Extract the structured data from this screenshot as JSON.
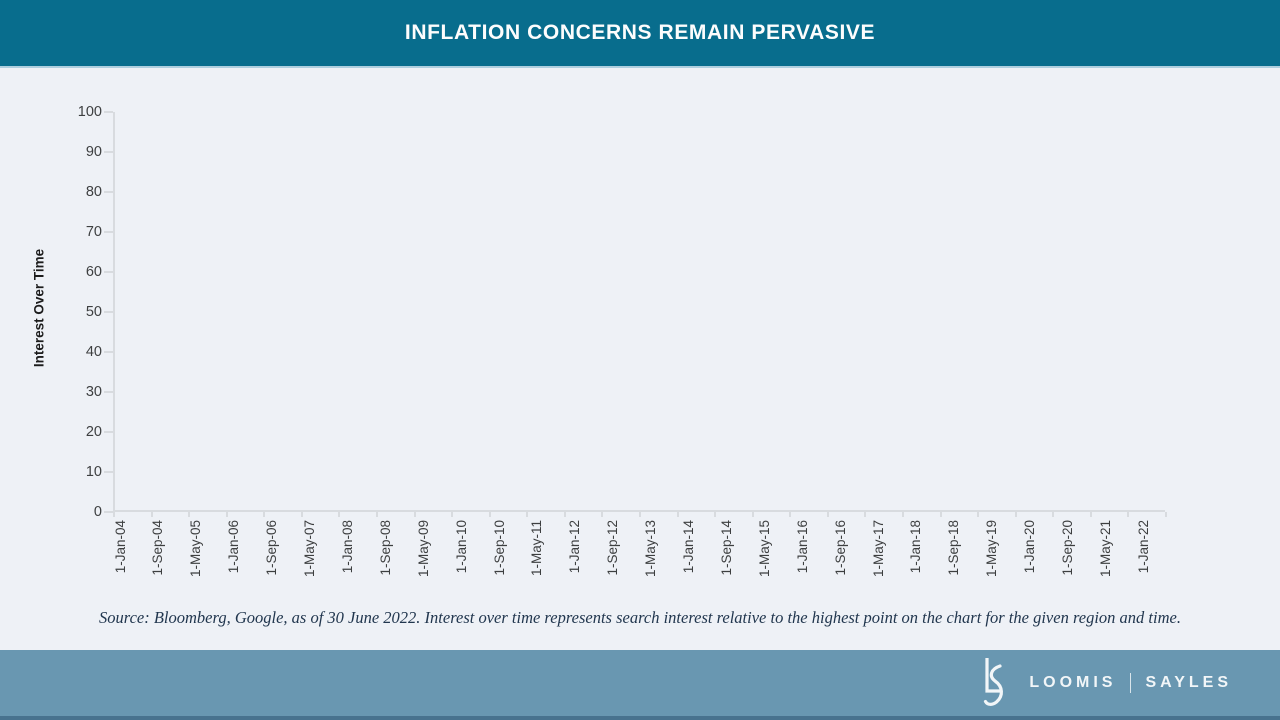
{
  "slide": {
    "title": "INFLATION CONCERNS REMAIN PERVASIVE",
    "source_note": "Source: Bloomberg, Google, as of 30 June 2022. Interest over time represents search interest relative to the highest point on the chart for the given region and time.",
    "footer": {
      "brand_left": "LOOMIS",
      "brand_right": "SAYLES",
      "monogram_icon": "ls-ligature-logo"
    },
    "colors": {
      "header_bg": "#086d8d",
      "page_bg": "#eef1f6",
      "footer_bg": "#6997b1",
      "footer_strip": "#48728e",
      "axis_line": "#d8dbdf",
      "tick_text": "#3d3f40",
      "source_text": "#21364e",
      "title_text": "#fdfdfd"
    }
  },
  "chart_data": {
    "type": "line",
    "title": "",
    "xlabel": "",
    "ylabel": "Interest Over Time",
    "ylim": [
      0,
      100
    ],
    "y_ticks": [
      0,
      10,
      20,
      30,
      40,
      50,
      60,
      70,
      80,
      90,
      100
    ],
    "x_tick_labels": [
      "1-Jan-04",
      "1-Sep-04",
      "1-May-05",
      "1-Jan-06",
      "1-Sep-06",
      "1-May-07",
      "1-Jan-08",
      "1-Sep-08",
      "1-May-09",
      "1-Jan-10",
      "1-Sep-10",
      "1-May-11",
      "1-Jan-12",
      "1-Sep-12",
      "1-May-13",
      "1-Jan-14",
      "1-Sep-14",
      "1-May-15",
      "1-Jan-16",
      "1-Sep-16",
      "1-May-17",
      "1-Jan-18",
      "1-Sep-18",
      "1-May-19",
      "1-Jan-20",
      "1-Sep-20",
      "1-May-21",
      "1-Jan-22"
    ],
    "grid": false,
    "legend": false,
    "series": []
  }
}
